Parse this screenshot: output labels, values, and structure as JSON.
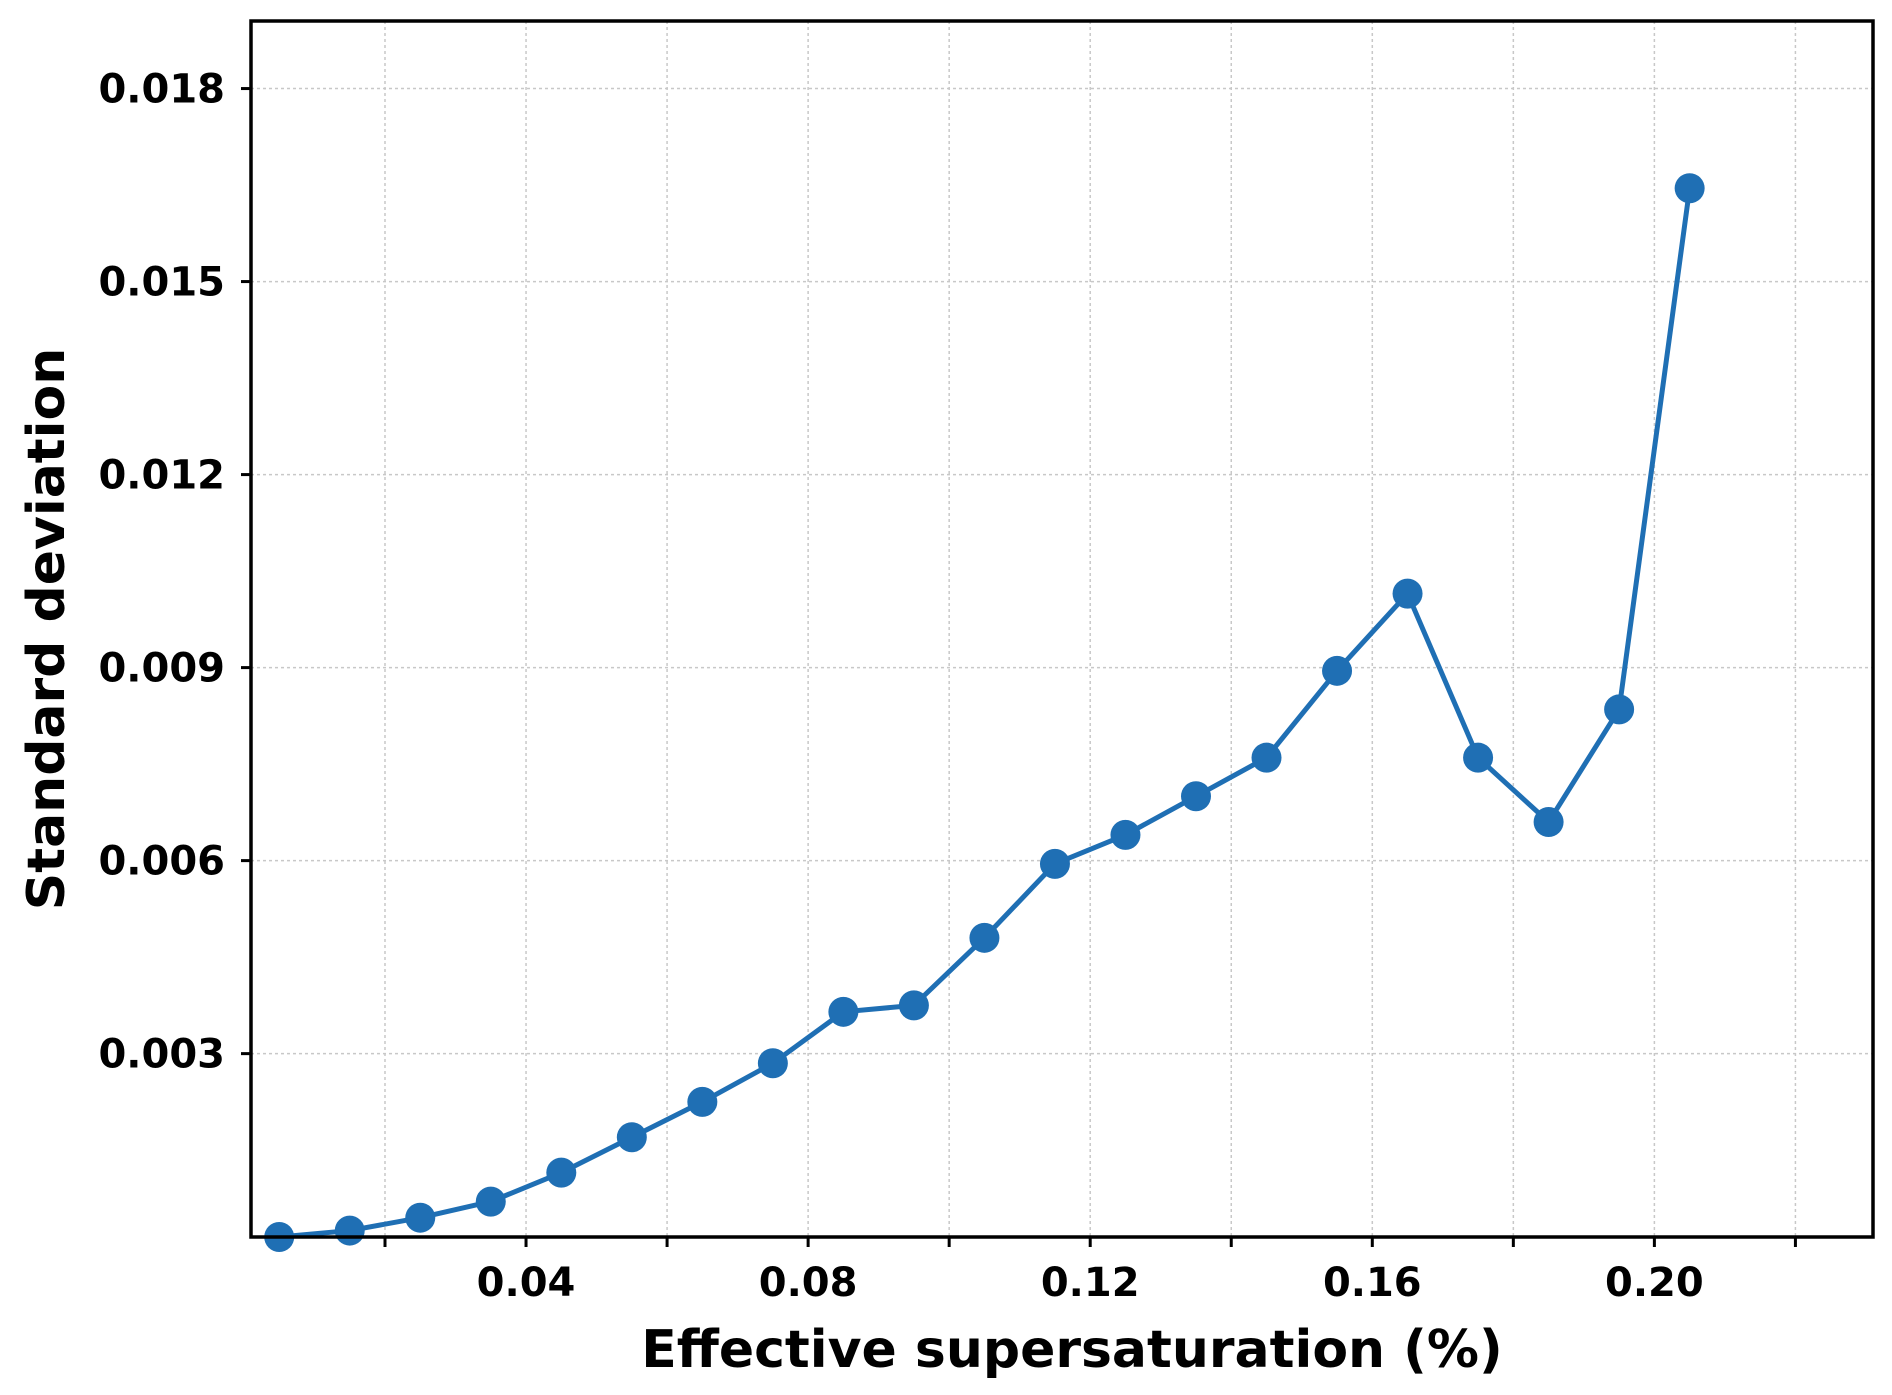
{
  "chart_data": {
    "type": "line",
    "title": "",
    "xlabel": "Effective supersaturation (%)",
    "ylabel": "Standard deviation",
    "xlim": [
      0.001,
      0.231
    ],
    "ylim": [
      0.00015,
      0.01905
    ],
    "x_ticks": [
      0.04,
      0.08,
      0.12,
      0.16,
      0.2
    ],
    "x_tick_labels": [
      "0.04",
      "0.08",
      "0.12",
      "0.16",
      "0.20"
    ],
    "x_minor_ticks": [
      0.02,
      0.06,
      0.1,
      0.14,
      0.18,
      0.22
    ],
    "y_ticks": [
      0.003,
      0.006,
      0.009,
      0.012,
      0.015,
      0.018
    ],
    "y_tick_labels": [
      "0.003",
      "0.006",
      "0.009",
      "0.012",
      "0.015",
      "0.018"
    ],
    "grid": true,
    "color": "#1f6fb4",
    "series": [
      {
        "x": [
          0.005,
          0.015,
          0.025,
          0.035,
          0.045,
          0.055,
          0.065,
          0.075,
          0.085,
          0.095,
          0.105,
          0.115,
          0.125,
          0.135,
          0.145,
          0.155,
          0.165,
          0.175,
          0.185,
          0.195,
          0.205
        ],
        "values": [
          0.00015,
          0.00025,
          0.00045,
          0.0007,
          0.00115,
          0.0017,
          0.00225,
          0.00285,
          0.00365,
          0.00375,
          0.0048,
          0.00595,
          0.0064,
          0.007,
          0.0076,
          0.00895,
          0.01015,
          0.0076,
          0.0066,
          0.00835,
          0.01645
        ]
      }
    ]
  }
}
